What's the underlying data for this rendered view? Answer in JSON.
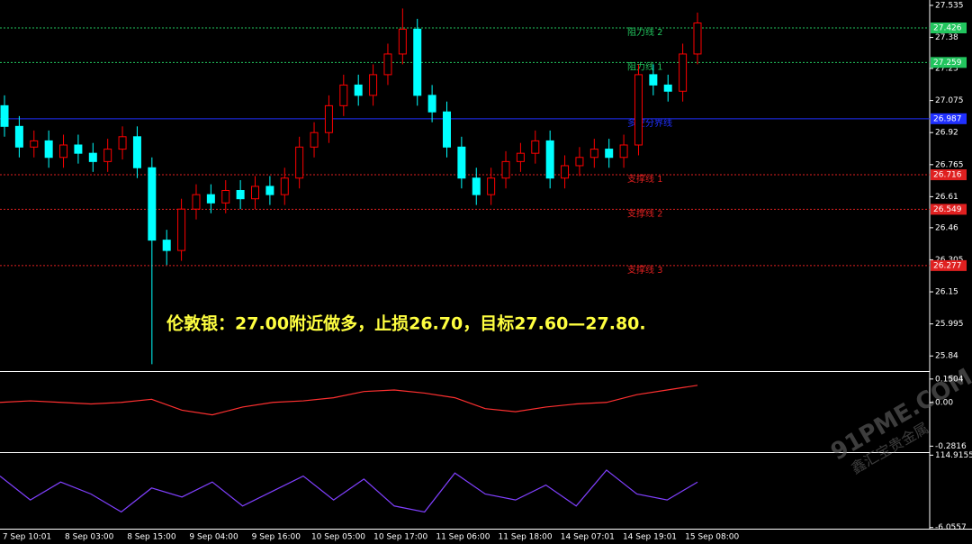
{
  "chart_data": {
    "type": "candlestick",
    "annotation": "伦敦银：27.00附近做多，止损26.70，目标27.60—27.80.",
    "watermark": [
      "91PME.COM",
      "鑫汇宝贵金属"
    ],
    "ylim": [
      25.767,
      27.561
    ],
    "yticks": [
      27.535,
      27.38,
      27.23,
      27.075,
      26.92,
      26.765,
      26.61,
      26.46,
      26.305,
      26.15,
      25.995,
      25.84
    ],
    "x_labels": [
      "7 Sep 10:01",
      "8 Sep 03:00",
      "8 Sep 15:00",
      "9 Sep 04:00",
      "9 Sep 16:00",
      "10 Sep 05:00",
      "10 Sep 17:00",
      "11 Sep 06:00",
      "11 Sep 18:00",
      "14 Sep 07:01",
      "14 Sep 19:01",
      "15 Sep 08:00"
    ],
    "up_color": "#ff0000",
    "down_color": "#00ffff",
    "open": [
      27.05,
      26.95,
      26.85,
      26.88,
      26.8,
      26.86,
      26.82,
      26.78,
      26.84,
      26.9,
      26.75,
      26.4,
      26.35,
      26.55,
      26.62,
      26.58,
      26.64,
      26.6,
      26.66,
      26.62,
      26.7,
      26.85,
      26.92,
      27.05,
      27.15,
      27.1,
      27.2,
      27.3,
      27.42,
      27.1,
      27.02,
      26.85,
      26.7,
      26.62,
      26.7,
      26.78,
      26.82,
      26.88,
      26.7,
      26.76,
      26.8,
      26.84,
      26.8,
      26.86,
      27.2,
      27.15,
      27.12,
      27.3
    ],
    "high": [
      27.1,
      27.0,
      26.93,
      26.93,
      26.91,
      26.91,
      26.87,
      26.89,
      26.95,
      26.95,
      26.8,
      26.45,
      26.6,
      26.67,
      26.67,
      26.69,
      26.69,
      26.71,
      26.71,
      26.75,
      26.9,
      26.97,
      27.1,
      27.2,
      27.2,
      27.25,
      27.35,
      27.52,
      27.47,
      27.15,
      27.07,
      26.9,
      26.75,
      26.75,
      26.83,
      26.87,
      26.93,
      26.93,
      26.81,
      26.85,
      26.89,
      26.89,
      26.91,
      27.25,
      27.25,
      27.2,
      27.35,
      27.5
    ],
    "low": [
      26.9,
      26.8,
      26.8,
      26.75,
      26.75,
      26.77,
      26.73,
      26.73,
      26.79,
      26.7,
      25.8,
      26.28,
      26.3,
      26.5,
      26.53,
      26.53,
      26.55,
      26.55,
      26.57,
      26.57,
      26.65,
      26.8,
      26.87,
      27.0,
      27.05,
      27.05,
      27.15,
      27.25,
      27.05,
      26.97,
      26.8,
      26.65,
      26.57,
      26.57,
      26.65,
      26.73,
      26.77,
      26.65,
      26.65,
      26.71,
      26.75,
      26.75,
      26.75,
      26.81,
      27.1,
      27.07,
      27.07,
      27.25
    ],
    "close": [
      26.95,
      26.85,
      26.88,
      26.8,
      26.86,
      26.82,
      26.78,
      26.84,
      26.9,
      26.75,
      26.4,
      26.35,
      26.55,
      26.62,
      26.58,
      26.64,
      26.6,
      26.66,
      26.62,
      26.7,
      26.85,
      26.92,
      27.05,
      27.15,
      27.1,
      27.2,
      27.3,
      27.42,
      27.1,
      27.02,
      26.85,
      26.7,
      26.62,
      26.7,
      26.78,
      26.82,
      26.88,
      26.7,
      26.76,
      26.8,
      26.84,
      26.8,
      26.86,
      27.2,
      27.15,
      27.12,
      27.3,
      27.45
    ],
    "levels": [
      {
        "label": "阻力线 2",
        "value": 27.426,
        "color": "#22c55e"
      },
      {
        "label": "阻力线 1",
        "value": 27.259,
        "color": "#22c55e"
      },
      {
        "label": "多空分界线",
        "value": 26.987,
        "color": "#2030ff"
      },
      {
        "label": "支撑线 1",
        "value": 26.716,
        "color": "#e02020"
      },
      {
        "label": "支撑线 2",
        "value": 26.549,
        "color": "#e02020"
      },
      {
        "label": "支撑线 3",
        "value": 26.277,
        "color": "#e02020"
      }
    ],
    "macd": {
      "color": "#ff3030",
      "ylim": [
        -0.32,
        0.19
      ],
      "yticks": [
        0.1504,
        {
          "value": 0,
          "label": "0.00"
        },
        -0.2816
      ],
      "values": [
        0.0,
        0.01,
        0.0,
        -0.01,
        0.0,
        0.02,
        -0.05,
        -0.08,
        -0.03,
        0.0,
        0.01,
        0.03,
        0.07,
        0.08,
        0.06,
        0.03,
        -0.04,
        -0.06,
        -0.03,
        -0.01,
        0.0,
        0.05,
        0.08,
        0.11
      ]
    },
    "stoch": {
      "color": "#8040ff",
      "ylim": [
        -8,
        117
      ],
      "yticks": [
        114.9155,
        -6.0557
      ],
      "values": [
        80,
        40,
        70,
        50,
        20,
        60,
        45,
        70,
        30,
        55,
        80,
        40,
        75,
        30,
        20,
        85,
        50,
        40,
        65,
        30,
        90,
        50,
        40,
        70
      ]
    }
  }
}
